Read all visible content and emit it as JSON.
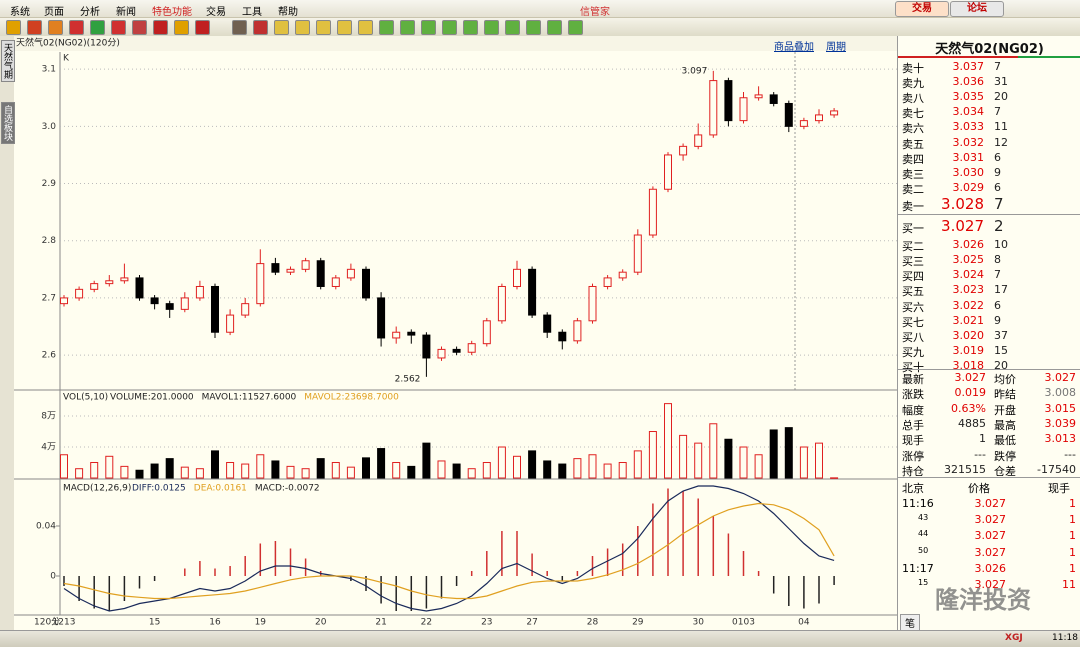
{
  "menu": {
    "items": [
      "系统",
      "页面",
      "分析",
      "新闻",
      "特色功能",
      "交易",
      "工具",
      "帮助"
    ],
    "app_title": "信管家",
    "buttons": [
      "交易",
      "论坛"
    ]
  },
  "side_tabs": [
    "天然气期",
    "自选板块"
  ],
  "chart_links": [
    "商品叠加",
    "周期"
  ],
  "chart_data": [
    {
      "type": "candlestick",
      "title": "天然气02(NG02)(120分)",
      "subtitle": "K",
      "x_label": "120分",
      "categories": [
        "1213",
        null,
        null,
        null,
        null,
        null,
        "15",
        null,
        null,
        null,
        "16",
        null,
        null,
        "19",
        null,
        null,
        null,
        "20",
        null,
        null,
        null,
        "21",
        null,
        null,
        "22",
        null,
        null,
        null,
        "23",
        null,
        null,
        "27",
        null,
        null,
        null,
        "28",
        null,
        null,
        "29",
        null,
        null,
        null,
        "30",
        null,
        null,
        "0103",
        null,
        null,
        null,
        "04",
        null,
        null
      ],
      "open": [
        2.69,
        2.7,
        2.715,
        2.725,
        2.73,
        2.735,
        2.7,
        2.69,
        2.68,
        2.7,
        2.72,
        2.64,
        2.67,
        2.69,
        2.76,
        2.745,
        2.75,
        2.765,
        2.72,
        2.735,
        2.75,
        2.7,
        2.63,
        2.64,
        2.635,
        2.595,
        2.61,
        2.605,
        2.62,
        2.66,
        2.72,
        2.75,
        2.67,
        2.64,
        2.625,
        2.66,
        2.72,
        2.735,
        2.745,
        2.81,
        2.89,
        2.95,
        2.965,
        2.985,
        3.08,
        3.01,
        3.05,
        3.055,
        3.04,
        3.0,
        3.01,
        3.02
      ],
      "high": [
        2.705,
        2.72,
        2.73,
        2.74,
        2.76,
        2.74,
        2.705,
        2.695,
        2.71,
        2.73,
        2.725,
        2.68,
        2.7,
        2.785,
        2.77,
        2.755,
        2.77,
        2.77,
        2.74,
        2.76,
        2.755,
        2.71,
        2.65,
        2.645,
        2.64,
        2.615,
        2.615,
        2.625,
        2.665,
        2.725,
        2.765,
        2.755,
        2.675,
        2.645,
        2.665,
        2.725,
        2.74,
        2.75,
        2.82,
        2.895,
        2.955,
        2.97,
        3.005,
        3.097,
        3.085,
        3.06,
        3.07,
        3.06,
        3.045,
        3.015,
        3.03,
        3.032
      ],
      "low": [
        2.685,
        2.695,
        2.71,
        2.72,
        2.725,
        2.695,
        2.68,
        2.665,
        2.675,
        2.695,
        2.63,
        2.635,
        2.665,
        2.685,
        2.74,
        2.74,
        2.745,
        2.715,
        2.715,
        2.73,
        2.695,
        2.615,
        2.62,
        2.62,
        2.562,
        2.59,
        2.6,
        2.6,
        2.615,
        2.655,
        2.715,
        2.665,
        2.63,
        2.61,
        2.62,
        2.655,
        2.715,
        2.73,
        2.74,
        2.805,
        2.885,
        2.94,
        2.96,
        2.98,
        3.0,
        3.005,
        3.045,
        3.035,
        2.99,
        2.995,
        3.005,
        3.015
      ],
      "close": [
        2.7,
        2.715,
        2.725,
        2.73,
        2.735,
        2.7,
        2.69,
        2.68,
        2.7,
        2.72,
        2.64,
        2.67,
        2.69,
        2.76,
        2.745,
        2.75,
        2.765,
        2.72,
        2.735,
        2.75,
        2.7,
        2.63,
        2.64,
        2.635,
        2.595,
        2.61,
        2.605,
        2.62,
        2.66,
        2.72,
        2.75,
        2.67,
        2.64,
        2.625,
        2.66,
        2.72,
        2.735,
        2.745,
        2.81,
        2.89,
        2.95,
        2.965,
        2.985,
        3.08,
        3.01,
        3.05,
        3.055,
        3.04,
        3.0,
        3.01,
        3.02,
        3.027
      ],
      "up_color": "#e02020",
      "down_color": "#000000",
      "ylim": [
        2.539,
        3.13
      ],
      "yticks": [
        2.6,
        2.7,
        2.8,
        2.9,
        {
          "value": 3,
          "label": "3.0"
        },
        3.1
      ],
      "grid": true
    },
    {
      "type": "bar",
      "title": "VOL(5,10)",
      "series": [
        {
          "name": "VOLUME:201.0000",
          "values": [
            30000,
            12000,
            20000,
            28000,
            15000,
            10000,
            18000,
            25000,
            14000,
            12000,
            35000,
            20000,
            18000,
            30000,
            22000,
            15000,
            12000,
            25000,
            20000,
            14000,
            26000,
            38000,
            20000,
            15000,
            45000,
            22000,
            18000,
            12000,
            20000,
            40000,
            28000,
            35000,
            22000,
            18000,
            25000,
            30000,
            18000,
            20000,
            35000,
            60000,
            96000,
            55000,
            45000,
            70000,
            50000,
            40000,
            30000,
            62000,
            65000,
            40000,
            45000,
            201
          ]
        }
      ],
      "indicators": [
        {
          "name": "MAVOL1:11527.6000",
          "color": "#222222"
        },
        {
          "name": "MAVOL2:23698.7000",
          "color": "#e0a020"
        }
      ],
      "ylim": [
        0,
        111000
      ],
      "yticks": [
        {
          "value": 40000,
          "label": "4万"
        },
        {
          "value": 80000,
          "label": "8万"
        }
      ],
      "grid": true
    },
    {
      "type": "macd",
      "title": "MACD(12,26,9)",
      "series": [
        {
          "name": "DIFF:0.0125",
          "color": "#1a2a5a",
          "values": [
            -0.01,
            -0.018,
            -0.024,
            -0.028,
            -0.026,
            -0.022,
            -0.02,
            -0.018,
            -0.014,
            -0.01,
            -0.012,
            -0.01,
            -0.004,
            0.004,
            0.008,
            0.008,
            0.006,
            0.002,
            0.0,
            -0.002,
            -0.008,
            -0.016,
            -0.022,
            -0.026,
            -0.028,
            -0.026,
            -0.022,
            -0.016,
            -0.006,
            0.006,
            0.01,
            0.004,
            -0.002,
            -0.006,
            -0.002,
            0.006,
            0.012,
            0.018,
            0.03,
            0.046,
            0.06,
            0.068,
            0.072,
            0.072,
            0.07,
            0.066,
            0.06,
            0.05,
            0.038,
            0.026,
            0.016,
            0.0125
          ]
        },
        {
          "name": "DEA:0.0161",
          "color": "#e0a020",
          "values": [
            -0.006,
            -0.008,
            -0.011,
            -0.014,
            -0.016,
            -0.017,
            -0.018,
            -0.018,
            -0.017,
            -0.016,
            -0.015,
            -0.014,
            -0.012,
            -0.009,
            -0.006,
            -0.003,
            -0.001,
            0.0,
            0.0,
            0.0,
            -0.002,
            -0.005,
            -0.008,
            -0.012,
            -0.015,
            -0.017,
            -0.018,
            -0.018,
            -0.016,
            -0.012,
            -0.008,
            -0.005,
            -0.004,
            -0.004,
            -0.004,
            -0.002,
            0.001,
            0.005,
            0.01,
            0.017,
            0.025,
            0.034,
            0.041,
            0.048,
            0.053,
            0.056,
            0.058,
            0.057,
            0.053,
            0.046,
            0.037,
            0.0161
          ]
        }
      ],
      "histogram": {
        "name": "MACD:-0.0072",
        "values": [
          -0.008,
          -0.02,
          -0.026,
          -0.028,
          -0.02,
          -0.01,
          -0.004,
          0.0,
          0.006,
          0.012,
          0.006,
          0.008,
          0.016,
          0.026,
          0.028,
          0.022,
          0.014,
          0.004,
          0.0,
          -0.004,
          -0.012,
          -0.022,
          -0.028,
          -0.028,
          -0.026,
          -0.018,
          -0.008,
          0.004,
          0.02,
          0.036,
          0.036,
          0.018,
          0.004,
          -0.004,
          0.004,
          0.016,
          0.022,
          0.026,
          0.04,
          0.058,
          0.07,
          0.068,
          0.062,
          0.048,
          0.034,
          0.02,
          0.004,
          -0.014,
          -0.024,
          -0.026,
          -0.022,
          -0.0072
        ]
      },
      "ylim": [
        -0.0312,
        0.0752
      ],
      "yticks": [
        0,
        0.04
      ],
      "grid": false
    }
  ],
  "quote": {
    "title": "天然气02(NG02)",
    "asks": [
      [
        "卖十",
        "3.037",
        "7"
      ],
      [
        "卖九",
        "3.036",
        "31"
      ],
      [
        "卖八",
        "3.035",
        "20"
      ],
      [
        "卖七",
        "3.034",
        "7"
      ],
      [
        "卖六",
        "3.033",
        "11"
      ],
      [
        "卖五",
        "3.032",
        "12"
      ],
      [
        "卖四",
        "3.031",
        "6"
      ],
      [
        "卖三",
        "3.030",
        "9"
      ],
      [
        "卖二",
        "3.029",
        "6"
      ],
      [
        "卖一",
        "3.028",
        "7"
      ]
    ],
    "bids": [
      [
        "买一",
        "3.027",
        "2"
      ],
      [
        "买二",
        "3.026",
        "10"
      ],
      [
        "买三",
        "3.025",
        "8"
      ],
      [
        "买四",
        "3.024",
        "7"
      ],
      [
        "买五",
        "3.023",
        "17"
      ],
      [
        "买六",
        "3.022",
        "6"
      ],
      [
        "买七",
        "3.021",
        "9"
      ],
      [
        "买八",
        "3.020",
        "37"
      ],
      [
        "买九",
        "3.019",
        "15"
      ],
      [
        "买十",
        "3.018",
        "20"
      ]
    ],
    "stats": [
      [
        "最新",
        "3.027",
        "均价",
        "3.027"
      ],
      [
        "涨跌",
        "0.019",
        "昨结",
        "3.008"
      ],
      [
        "幅度",
        "0.63%",
        "开盘",
        "3.015"
      ],
      [
        "总手",
        "4885",
        "最高",
        "3.039"
      ],
      [
        "现手",
        "1",
        "最低",
        "3.013"
      ],
      [
        "涨停",
        "---",
        "跌停",
        "---"
      ],
      [
        "持仓",
        "321515",
        "仓差",
        "-17540"
      ]
    ],
    "trades": {
      "header": [
        "北京",
        "价格",
        "现手"
      ],
      "rows": [
        [
          "11:16",
          "3.027",
          "1"
        ],
        [
          "43",
          "3.027",
          "1"
        ],
        [
          "44",
          "3.027",
          "1"
        ],
        [
          "50",
          "3.027",
          "1"
        ],
        [
          "11:17",
          "3.026",
          "1"
        ],
        [
          "15",
          "3.027",
          "11"
        ]
      ]
    },
    "footer_tab": "笔"
  },
  "watermark": "隆洋投资",
  "status": {
    "brand": "XGJ",
    "time": "11:18"
  }
}
